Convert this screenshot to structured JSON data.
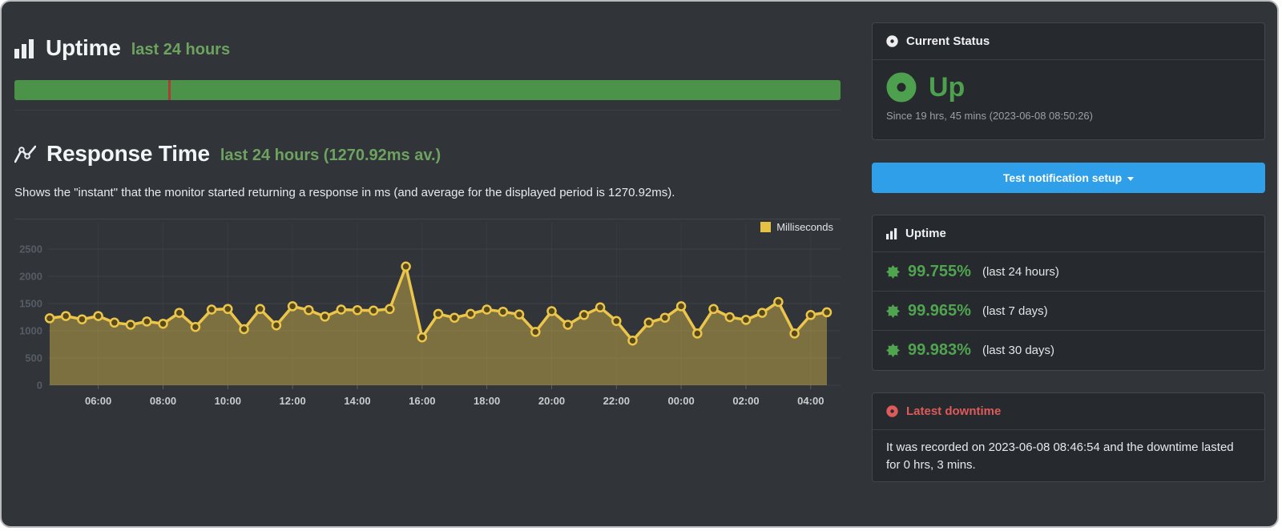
{
  "window": {
    "background": "#31353a",
    "card_background": "#26292e",
    "frame_border": "#b9bbbd"
  },
  "main": {
    "uptime": {
      "title": "Uptime",
      "subtitle": "last 24 hours"
    },
    "uptime_bar": {
      "color": "#4b9349",
      "downtime_tick_color": "#ab3c3a",
      "downtime_tick_position_pct": 18.6
    },
    "response": {
      "title": "Response Time",
      "subtitle": "last 24 hours (1270.92ms av.)",
      "description": "Shows the \"instant\" that the monitor started returning a response in ms (and average for the displayed period is 1270.92ms)."
    }
  },
  "chart_data": {
    "type": "line",
    "title": "Response Time, last 24 hours",
    "ylabel": "Milliseconds",
    "grid": true,
    "legend_position": "top-right",
    "average_ms": 1270.92,
    "ylim": [
      0,
      2500
    ],
    "yticks": [
      0,
      500,
      1000,
      1500,
      2000,
      2500
    ],
    "xticks": [
      "06:00",
      "08:00",
      "10:00",
      "12:00",
      "14:00",
      "16:00",
      "18:00",
      "20:00",
      "22:00",
      "00:00",
      "02:00",
      "04:00"
    ],
    "x": [
      "04:30",
      "05:00",
      "05:30",
      "06:00",
      "06:30",
      "07:00",
      "07:30",
      "08:00",
      "08:30",
      "09:00",
      "09:30",
      "10:00",
      "10:30",
      "11:00",
      "11:30",
      "12:00",
      "12:30",
      "13:00",
      "13:30",
      "14:00",
      "14:30",
      "15:00",
      "15:30",
      "16:00",
      "16:30",
      "17:00",
      "17:30",
      "18:00",
      "18:30",
      "19:00",
      "19:30",
      "20:00",
      "20:30",
      "21:00",
      "21:30",
      "22:00",
      "22:30",
      "23:00",
      "23:30",
      "00:00",
      "00:30",
      "01:00",
      "01:30",
      "02:00",
      "02:30",
      "03:00",
      "03:30",
      "04:00",
      "04:30"
    ],
    "series": [
      {
        "name": "Milliseconds",
        "color": "#ecc64a",
        "fill": "rgba(231,196,74,0.42)",
        "point_fill": "#57491c",
        "values": [
          1230,
          1270,
          1210,
          1270,
          1150,
          1110,
          1170,
          1130,
          1330,
          1070,
          1390,
          1400,
          1030,
          1400,
          1100,
          1450,
          1380,
          1260,
          1390,
          1380,
          1370,
          1400,
          2180,
          880,
          1310,
          1240,
          1310,
          1390,
          1350,
          1300,
          980,
          1360,
          1110,
          1290,
          1430,
          1180,
          820,
          1150,
          1240,
          1450,
          950,
          1400,
          1250,
          1200,
          1330,
          1530,
          950,
          1290,
          1340
        ]
      }
    ]
  },
  "sidebar": {
    "current_status": {
      "header": "Current Status",
      "status": "Up",
      "status_color": "#4da04d",
      "since": "Since 19 hrs, 45 mins (2023-06-08 08:50:26)"
    },
    "notification_button": {
      "label": "Test notification setup",
      "color": "#2e9fe8"
    },
    "uptime_card": {
      "header": "Uptime",
      "value_color": "#50a450",
      "rows": [
        {
          "value": "99.755%",
          "label": "(last 24 hours)"
        },
        {
          "value": "99.965%",
          "label": "(last 7 days)"
        },
        {
          "value": "99.983%",
          "label": "(last 30 days)"
        }
      ]
    },
    "downtime_card": {
      "header": "Latest downtime",
      "header_color": "#dd5b58",
      "body": "It was recorded on 2023-06-08 08:46:54 and the downtime lasted for 0 hrs, 3 mins."
    }
  }
}
